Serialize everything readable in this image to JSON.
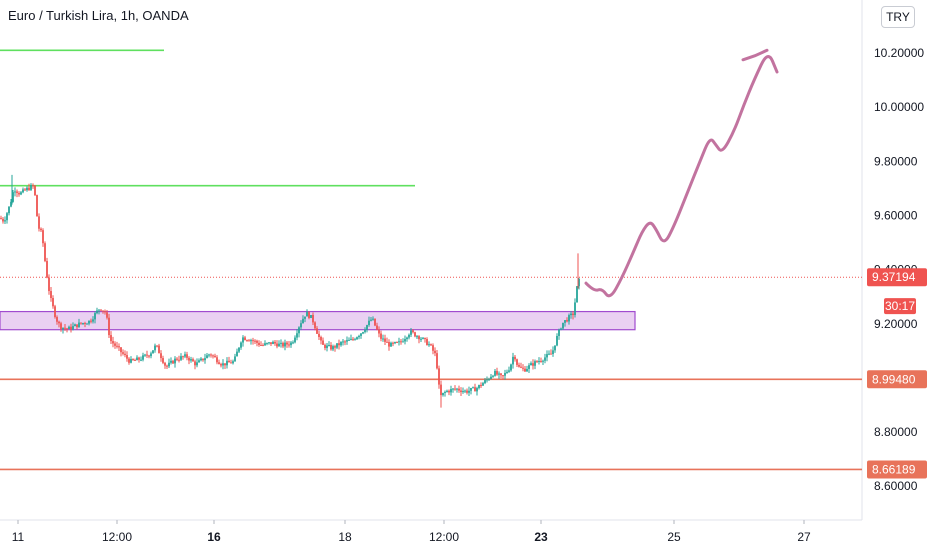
{
  "header": {
    "title": "Euro / Turkish Lira, 1h, OANDA",
    "currency": "TRY"
  },
  "chart_data": {
    "type": "candlestick",
    "title": "Euro / Turkish Lira, 1h, OANDA",
    "y_axis": {
      "ticks": [
        "10.20000",
        "10.00000",
        "9.80000",
        "9.60000",
        "9.40000",
        "9.20000",
        "8.80000",
        "8.60000"
      ],
      "ylim": [
        8.52,
        10.4
      ]
    },
    "x_axis": {
      "ticks": [
        {
          "label": "11",
          "bold": false
        },
        {
          "label": "12:00",
          "bold": false
        },
        {
          "label": "16",
          "bold": true
        },
        {
          "label": "18",
          "bold": false
        },
        {
          "label": "12:00",
          "bold": false
        },
        {
          "label": "23",
          "bold": true
        },
        {
          "label": "25",
          "bold": false
        },
        {
          "label": "27",
          "bold": false
        }
      ]
    },
    "price_path": [
      [
        0,
        9.59
      ],
      [
        4,
        9.58
      ],
      [
        10,
        9.64
      ],
      [
        14,
        9.7
      ],
      [
        20,
        9.68
      ],
      [
        28,
        9.7
      ],
      [
        34,
        9.71
      ],
      [
        38,
        9.56
      ],
      [
        42,
        9.53
      ],
      [
        46,
        9.4
      ],
      [
        50,
        9.3
      ],
      [
        56,
        9.22
      ],
      [
        60,
        9.19
      ],
      [
        68,
        9.18
      ],
      [
        80,
        9.2
      ],
      [
        90,
        9.21
      ],
      [
        100,
        9.26
      ],
      [
        106,
        9.24
      ],
      [
        110,
        9.14
      ],
      [
        120,
        9.1
      ],
      [
        130,
        9.06
      ],
      [
        140,
        9.07
      ],
      [
        150,
        9.09
      ],
      [
        156,
        9.12
      ],
      [
        166,
        9.04
      ],
      [
        176,
        9.07
      ],
      [
        186,
        9.08
      ],
      [
        196,
        9.05
      ],
      [
        210,
        9.09
      ],
      [
        222,
        9.05
      ],
      [
        234,
        9.06
      ],
      [
        242,
        9.15
      ],
      [
        252,
        9.14
      ],
      [
        262,
        9.12
      ],
      [
        272,
        9.13
      ],
      [
        282,
        9.12
      ],
      [
        292,
        9.13
      ],
      [
        300,
        9.2
      ],
      [
        306,
        9.24
      ],
      [
        312,
        9.22
      ],
      [
        322,
        9.12
      ],
      [
        332,
        9.11
      ],
      [
        342,
        9.13
      ],
      [
        352,
        9.14
      ],
      [
        362,
        9.17
      ],
      [
        372,
        9.22
      ],
      [
        380,
        9.15
      ],
      [
        390,
        9.12
      ],
      [
        400,
        9.13
      ],
      [
        410,
        9.17
      ],
      [
        420,
        9.15
      ],
      [
        430,
        9.12
      ],
      [
        436,
        9.08
      ],
      [
        440,
        8.93
      ],
      [
        446,
        8.95
      ],
      [
        456,
        8.96
      ],
      [
        466,
        8.95
      ],
      [
        476,
        8.96
      ],
      [
        486,
        8.99
      ],
      [
        494,
        9.02
      ],
      [
        502,
        9.0
      ],
      [
        510,
        9.04
      ],
      [
        514,
        9.09
      ],
      [
        518,
        9.04
      ],
      [
        524,
        9.03
      ],
      [
        532,
        9.05
      ],
      [
        542,
        9.07
      ],
      [
        552,
        9.09
      ],
      [
        556,
        9.14
      ],
      [
        562,
        9.2
      ],
      [
        568,
        9.22
      ],
      [
        574,
        9.24
      ],
      [
        576,
        9.32
      ],
      [
        580,
        9.37
      ]
    ],
    "lines": [
      {
        "name": "green-resistance-upper",
        "price": 10.21,
        "x_start": 0,
        "x_end": 164,
        "color": "#5fe05f"
      },
      {
        "name": "green-resistance",
        "price": 9.71,
        "x_start": 0,
        "x_end": 415,
        "color": "#5fe05f"
      },
      {
        "name": "red-support",
        "price": 8.9948,
        "x_start": 0,
        "x_end": 862,
        "color": "#e8735a"
      },
      {
        "name": "red-support-lower",
        "price": 8.66189,
        "x_start": 0,
        "x_end": 862,
        "color": "#e8735a"
      },
      {
        "name": "current-price-line",
        "price": 9.37194,
        "x_start": 0,
        "x_end": 862,
        "color": "#ef5350",
        "dotted": true
      }
    ],
    "zone": {
      "price_top": 9.245,
      "price_bottom": 9.178,
      "x_start": 0,
      "x_end": 635,
      "fill": "#e6c8f0",
      "stroke": "#a14bcf"
    },
    "projection": [
      [
        586,
        9.35
      ],
      [
        594,
        9.32
      ],
      [
        602,
        9.33
      ],
      [
        610,
        9.29
      ],
      [
        622,
        9.37
      ],
      [
        634,
        9.47
      ],
      [
        642,
        9.54
      ],
      [
        650,
        9.58
      ],
      [
        656,
        9.55
      ],
      [
        664,
        9.49
      ],
      [
        674,
        9.56
      ],
      [
        688,
        9.69
      ],
      [
        700,
        9.8
      ],
      [
        710,
        9.89
      ],
      [
        716,
        9.86
      ],
      [
        722,
        9.83
      ],
      [
        734,
        9.91
      ],
      [
        744,
        10.01
      ],
      [
        754,
        10.1
      ],
      [
        768,
        10.21
      ],
      [
        777,
        10.13
      ]
    ],
    "projection_head": [
      [
        743,
        10.175
      ],
      [
        755,
        10.19
      ],
      [
        767,
        10.21
      ]
    ],
    "price_labels": [
      {
        "text": "9.37194",
        "price": 9.37194,
        "bg": "#ef5350",
        "fg": "#ffffff"
      },
      {
        "text": "30:17",
        "price": 9.265,
        "bg": "#ef5350",
        "fg": "#ffffff",
        "small": true
      },
      {
        "text": "8.99480",
        "price": 8.9948,
        "bg": "#e8735a",
        "fg": "#ffffff"
      },
      {
        "text": "8.66189",
        "price": 8.66189,
        "bg": "#e8735a",
        "fg": "#ffffff"
      }
    ],
    "colors": {
      "up": "#26a69a",
      "down": "#ef5350",
      "projection": "#c2739f",
      "axis_text": "#131722",
      "grid_axis": "#e0e3eb"
    }
  }
}
